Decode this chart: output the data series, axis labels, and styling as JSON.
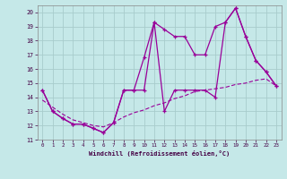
{
  "xlabel": "Windchill (Refroidissement éolien,°C)",
  "xlim": [
    -0.5,
    23.5
  ],
  "ylim": [
    11,
    20.5
  ],
  "xticks": [
    0,
    1,
    2,
    3,
    4,
    5,
    6,
    7,
    8,
    9,
    10,
    11,
    12,
    13,
    14,
    15,
    16,
    17,
    18,
    19,
    20,
    21,
    22,
    23
  ],
  "yticks": [
    11,
    12,
    13,
    14,
    15,
    16,
    17,
    18,
    19,
    20
  ],
  "background_color": "#c5e8e8",
  "grid_color": "#a8cccc",
  "line_color": "#990099",
  "line1_x": [
    0,
    1,
    2,
    3,
    4,
    5,
    6,
    7,
    8,
    9,
    10,
    11,
    12,
    13,
    14,
    15,
    16,
    17,
    18,
    19,
    20,
    21,
    22,
    23
  ],
  "line1_y": [
    14.5,
    13.0,
    12.5,
    12.1,
    12.1,
    11.8,
    11.5,
    12.2,
    14.5,
    14.5,
    16.8,
    19.3,
    18.8,
    18.3,
    18.3,
    17.0,
    17.0,
    19.0,
    19.3,
    20.3,
    18.3,
    16.6,
    15.8,
    14.8
  ],
  "line2_x": [
    0,
    1,
    2,
    3,
    4,
    5,
    6,
    7,
    8,
    9,
    10,
    11,
    12,
    13,
    14,
    15,
    16,
    17,
    18,
    19,
    20,
    21,
    22,
    23
  ],
  "line2_y": [
    14.5,
    13.0,
    12.5,
    12.1,
    12.1,
    11.8,
    11.5,
    12.2,
    14.5,
    14.5,
    14.5,
    19.3,
    13.0,
    14.5,
    14.5,
    14.5,
    14.5,
    14.0,
    19.3,
    20.3,
    18.3,
    16.6,
    15.8,
    14.8
  ],
  "line3_x": [
    0,
    1,
    2,
    3,
    4,
    5,
    6,
    7,
    8,
    9,
    10,
    11,
    12,
    13,
    14,
    15,
    16,
    17,
    18,
    19,
    20,
    21,
    22,
    23
  ],
  "line3_y": [
    13.8,
    13.3,
    12.8,
    12.4,
    12.2,
    12.0,
    11.9,
    12.2,
    12.6,
    12.9,
    13.1,
    13.4,
    13.6,
    13.9,
    14.1,
    14.4,
    14.5,
    14.6,
    14.7,
    14.9,
    15.0,
    15.2,
    15.3,
    14.8
  ]
}
